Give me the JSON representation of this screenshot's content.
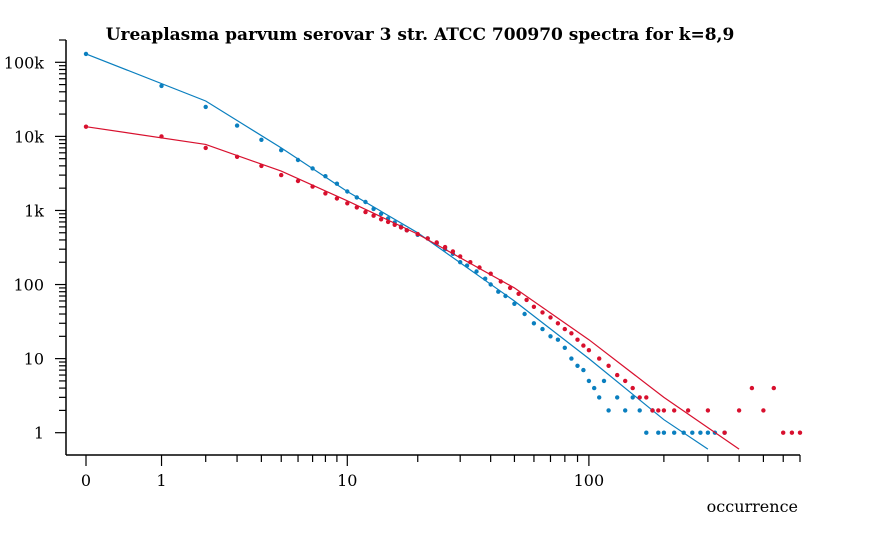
{
  "chart_data": {
    "type": "scatter",
    "title": "Ureaplasma parvum serovar 3 str. ATCC 700970 spectra for k=8,9",
    "xlabel": "occurrence",
    "ylabel": "",
    "x_scale": "log (x+1)",
    "y_scale": "log",
    "xlim": [
      0,
      700
    ],
    "ylim": [
      0.5,
      200000
    ],
    "x_ticks": [
      "0",
      "1",
      "10",
      "100"
    ],
    "y_ticks": [
      "1",
      "10",
      "100",
      "1k",
      "10k",
      "100k"
    ],
    "grid": false,
    "series": [
      {
        "color": "#0a7fbf",
        "points": [
          [
            0,
            130000
          ],
          [
            1,
            48000
          ],
          [
            2,
            25000
          ],
          [
            3,
            14000
          ],
          [
            4,
            9000
          ],
          [
            5,
            6500
          ],
          [
            6,
            4800
          ],
          [
            7,
            3700
          ],
          [
            8,
            2900
          ],
          [
            9,
            2300
          ],
          [
            10,
            1800
          ],
          [
            11,
            1500
          ],
          [
            12,
            1300
          ],
          [
            13,
            1050
          ],
          [
            14,
            900
          ],
          [
            15,
            780
          ],
          [
            16,
            690
          ],
          [
            17,
            610
          ],
          [
            18,
            540
          ],
          [
            20,
            470
          ],
          [
            22,
            420
          ],
          [
            24,
            360
          ],
          [
            26,
            300
          ],
          [
            28,
            260
          ],
          [
            30,
            200
          ],
          [
            32,
            180
          ],
          [
            35,
            150
          ],
          [
            38,
            120
          ],
          [
            40,
            100
          ],
          [
            43,
            80
          ],
          [
            46,
            70
          ],
          [
            50,
            55
          ],
          [
            55,
            40
          ],
          [
            60,
            30
          ],
          [
            65,
            25
          ],
          [
            70,
            20
          ],
          [
            75,
            18
          ],
          [
            80,
            14
          ],
          [
            85,
            10
          ],
          [
            90,
            8
          ],
          [
            95,
            7
          ],
          [
            100,
            5
          ],
          [
            105,
            4
          ],
          [
            110,
            3
          ],
          [
            115,
            5
          ],
          [
            120,
            2
          ],
          [
            130,
            3
          ],
          [
            140,
            2
          ],
          [
            150,
            3
          ],
          [
            160,
            2
          ],
          [
            170,
            1
          ],
          [
            180,
            2
          ],
          [
            190,
            1
          ],
          [
            200,
            1
          ],
          [
            220,
            1
          ],
          [
            240,
            1
          ],
          [
            260,
            1
          ],
          [
            280,
            1
          ],
          [
            300,
            1
          ],
          [
            320,
            1
          ],
          [
            350,
            1
          ]
        ],
        "fit": [
          [
            0,
            130000
          ],
          [
            2,
            30000
          ],
          [
            5,
            7000
          ],
          [
            10,
            1800
          ],
          [
            20,
            500
          ],
          [
            50,
            60
          ],
          [
            100,
            10
          ],
          [
            200,
            1.5
          ],
          [
            300,
            0.6
          ]
        ]
      },
      {
        "color": "#d8102e",
        "points": [
          [
            0,
            13500
          ],
          [
            1,
            10000
          ],
          [
            2,
            7000
          ],
          [
            3,
            5300
          ],
          [
            4,
            4000
          ],
          [
            5,
            3000
          ],
          [
            6,
            2500
          ],
          [
            7,
            2100
          ],
          [
            8,
            1700
          ],
          [
            9,
            1450
          ],
          [
            10,
            1250
          ],
          [
            11,
            1100
          ],
          [
            12,
            950
          ],
          [
            13,
            850
          ],
          [
            14,
            760
          ],
          [
            15,
            700
          ],
          [
            16,
            640
          ],
          [
            17,
            590
          ],
          [
            18,
            540
          ],
          [
            20,
            480
          ],
          [
            22,
            420
          ],
          [
            24,
            370
          ],
          [
            26,
            320
          ],
          [
            28,
            280
          ],
          [
            30,
            240
          ],
          [
            33,
            200
          ],
          [
            36,
            170
          ],
          [
            40,
            140
          ],
          [
            44,
            110
          ],
          [
            48,
            90
          ],
          [
            52,
            75
          ],
          [
            56,
            62
          ],
          [
            60,
            50
          ],
          [
            65,
            42
          ],
          [
            70,
            36
          ],
          [
            75,
            30
          ],
          [
            80,
            25
          ],
          [
            85,
            22
          ],
          [
            90,
            18
          ],
          [
            95,
            15
          ],
          [
            100,
            13
          ],
          [
            110,
            10
          ],
          [
            120,
            8
          ],
          [
            130,
            6
          ],
          [
            140,
            5
          ],
          [
            150,
            4
          ],
          [
            160,
            3
          ],
          [
            170,
            3
          ],
          [
            180,
            2
          ],
          [
            190,
            2
          ],
          [
            200,
            2
          ],
          [
            220,
            2
          ],
          [
            250,
            2
          ],
          [
            300,
            2
          ],
          [
            350,
            1
          ],
          [
            400,
            2
          ],
          [
            450,
            4
          ],
          [
            500,
            2
          ],
          [
            550,
            4
          ],
          [
            600,
            1
          ],
          [
            650,
            1
          ],
          [
            700,
            1
          ]
        ],
        "fit": [
          [
            0,
            13500
          ],
          [
            2,
            7800
          ],
          [
            5,
            3400
          ],
          [
            10,
            1350
          ],
          [
            20,
            480
          ],
          [
            50,
            90
          ],
          [
            100,
            18
          ],
          [
            200,
            3
          ],
          [
            400,
            0.6
          ]
        ]
      }
    ]
  }
}
